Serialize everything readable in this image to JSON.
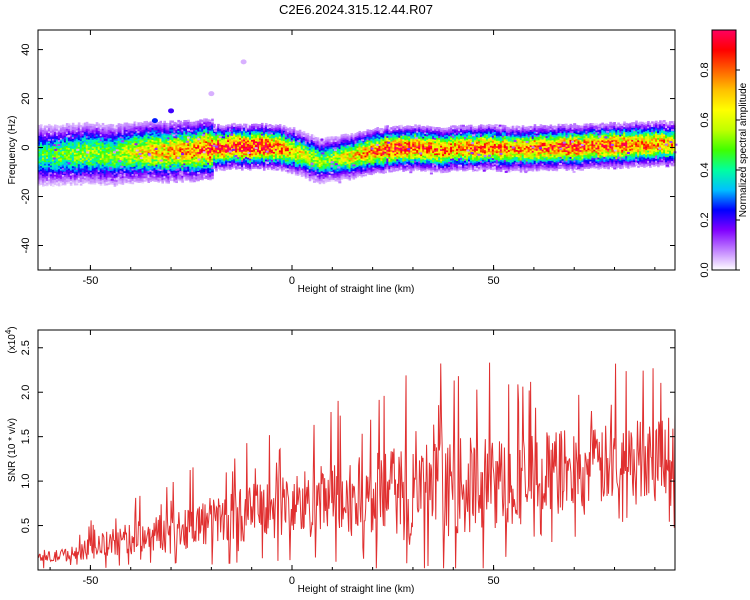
{
  "page": {
    "title": "C2E6.2024.315.12.44.R07"
  },
  "chart_data": [
    {
      "type": "heatmap",
      "title": "C2E6.2024.315.12.44.R07",
      "xlabel": "Height of straight line (km)",
      "ylabel": "Frequency (Hz)",
      "xlim": [
        -63,
        95
      ],
      "ylim": [
        -50,
        48
      ],
      "x_ticks": [
        -50,
        0,
        50
      ],
      "x_tick_labels": [
        "-50",
        "0",
        "50"
      ],
      "y_ticks": [
        40,
        20,
        0,
        -20,
        -40
      ],
      "y_tick_labels": [
        "40",
        "20",
        "0",
        "-20",
        "-40"
      ],
      "colorbar": {
        "label": "Normalized spectral amplitude",
        "range": [
          0,
          0.96
        ],
        "ticks": [
          0.0,
          0.2,
          0.4,
          0.6,
          0.8
        ],
        "tick_labels": [
          "0.0",
          "0.2",
          "0.4",
          "0.6",
          "0.8"
        ],
        "colors": [
          "#ffffff",
          "#c080ff",
          "#8000ff",
          "#0000ff",
          "#00c0ff",
          "#00ffa0",
          "#40ff00",
          "#c0ff00",
          "#ffff00",
          "#ffc000",
          "#ff6000",
          "#ff0000",
          "#ff0060"
        ]
      },
      "ridge": {
        "x": [
          -63,
          -55,
          -50,
          -45,
          -40,
          -35,
          -30,
          -25,
          -20,
          -15,
          -10,
          -5,
          0,
          3,
          6,
          8,
          12,
          16,
          20,
          25,
          30,
          35,
          40,
          45,
          50,
          55,
          60,
          65,
          70,
          75,
          80,
          85,
          90,
          95
        ],
        "freq": [
          -3,
          -2.5,
          -2,
          -3,
          -2,
          -1.5,
          -1.5,
          -1,
          0,
          0.5,
          0.5,
          0.5,
          -1,
          -3,
          -5,
          -5,
          -4,
          -3,
          -1.5,
          0,
          0,
          -0.5,
          -0.5,
          0,
          0,
          -0.5,
          0,
          0,
          0.5,
          0.5,
          1,
          1.5,
          1.5,
          2
        ],
        "amplitude": [
          0.45,
          0.5,
          0.55,
          0.5,
          0.6,
          0.7,
          0.7,
          0.75,
          0.85,
          0.9,
          0.9,
          0.85,
          0.7,
          0.6,
          0.55,
          0.5,
          0.6,
          0.7,
          0.8,
          0.85,
          0.85,
          0.8,
          0.75,
          0.8,
          0.8,
          0.75,
          0.8,
          0.8,
          0.85,
          0.8,
          0.85,
          0.8,
          0.75,
          0.7
        ]
      },
      "outliers": [
        {
          "x": -34,
          "freq": 11,
          "amplitude": 0.25
        },
        {
          "x": -30,
          "freq": 15,
          "amplitude": 0.2
        },
        {
          "x": -20,
          "freq": 22,
          "amplitude": 0.05
        },
        {
          "x": -12,
          "freq": 35,
          "amplitude": 0.05
        }
      ]
    },
    {
      "type": "line",
      "xlabel": "Height of straight line (km)",
      "ylabel": "SNR (10 * v/v)",
      "y_multiplier_label": "(x10",
      "y_multiplier_exponent": "4",
      "xlim": [
        -63,
        95
      ],
      "ylim": [
        0,
        2.7
      ],
      "x_ticks": [
        -50,
        0,
        50
      ],
      "x_tick_labels": [
        "-50",
        "0",
        "50"
      ],
      "y_ticks": [
        0.5,
        1.0,
        1.5,
        2.0,
        2.5
      ],
      "y_tick_labels": [
        "0.5",
        "1.0",
        "1.5",
        "2.0",
        "2.5"
      ],
      "series": [
        {
          "color": "#e03030",
          "trend": {
            "x": [
              -63,
              -55,
              -45,
              -35,
              -25,
              -15,
              -5,
              5,
              15,
              25,
              35,
              45,
              55,
              65,
              75,
              85,
              95
            ],
            "base": [
              0.12,
              0.18,
              0.3,
              0.4,
              0.5,
              0.6,
              0.7,
              0.75,
              0.8,
              0.85,
              0.9,
              0.95,
              1.0,
              1.1,
              1.15,
              1.25,
              1.35
            ],
            "amplitude": [
              0.1,
              0.12,
              0.25,
              0.3,
              0.4,
              0.45,
              0.55,
              0.65,
              0.7,
              0.8,
              0.85,
              0.85,
              0.8,
              0.75,
              0.7,
              0.7,
              0.75
            ]
          }
        }
      ]
    }
  ]
}
